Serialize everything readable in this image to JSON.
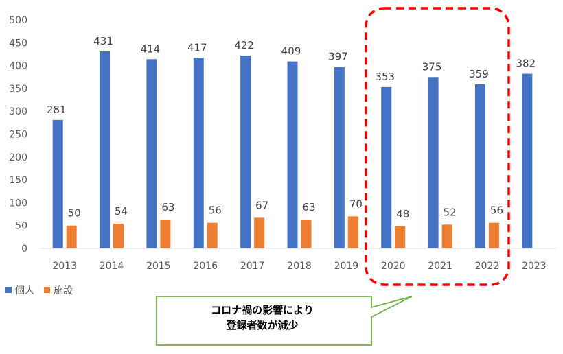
{
  "chart_data": {
    "type": "bar",
    "categories": [
      "2013",
      "2014",
      "2015",
      "2016",
      "2017",
      "2018",
      "2019",
      "2020",
      "2021",
      "2022",
      "2023"
    ],
    "series": [
      {
        "name": "個人",
        "color": "#4472C4",
        "values": [
          281,
          431,
          414,
          417,
          422,
          409,
          397,
          353,
          375,
          359,
          382
        ]
      },
      {
        "name": "施設",
        "color": "#ED7D31",
        "values": [
          50,
          54,
          63,
          56,
          67,
          63,
          70,
          48,
          52,
          56,
          null
        ]
      }
    ],
    "y_ticks": [
      0,
      50,
      100,
      150,
      200,
      250,
      300,
      350,
      400,
      450,
      500
    ],
    "ylim": [
      0,
      500
    ],
    "grid": false,
    "legend_position": "bottom-left",
    "highlight": {
      "categories": [
        "2020",
        "2021",
        "2022"
      ],
      "style": "red-dashed-rounded-box",
      "color": "#FF0000"
    },
    "annotation": {
      "lines": [
        "コロナ禍の影響により",
        "登録者数が減少"
      ],
      "border_color": "#70AD47"
    }
  }
}
